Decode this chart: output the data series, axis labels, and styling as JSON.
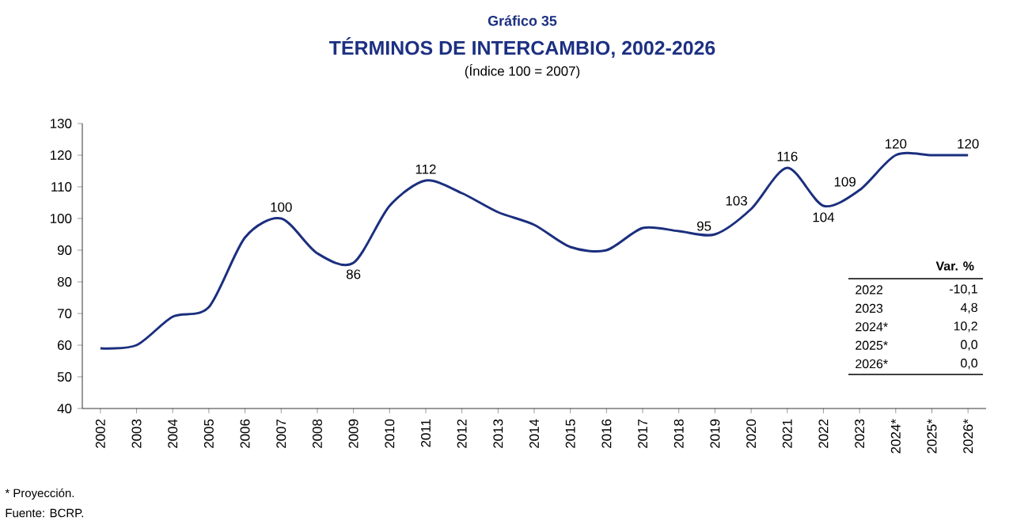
{
  "chart_data": {
    "type": "line",
    "title": "TÉRMINOS DE INTERCAMBIO, 2002-2026",
    "subtitle": "(Índice 100 = 2007)",
    "categories": [
      "2002",
      "2003",
      "2004",
      "2005",
      "2006",
      "2007",
      "2008",
      "2009",
      "2010",
      "2011",
      "2012",
      "2013",
      "2014",
      "2015",
      "2016",
      "2017",
      "2018",
      "2019",
      "2020",
      "2021",
      "2022",
      "2023",
      "2024*",
      "2025*",
      "2026*"
    ],
    "series": [
      {
        "color": "#1b2f7e",
        "values": [
          59,
          60,
          69,
          72,
          94,
          100,
          89,
          86,
          104,
          112,
          108,
          102,
          98,
          91,
          90,
          97,
          96,
          95,
          103,
          116,
          104,
          109,
          120,
          120,
          120
        ]
      }
    ],
    "value_labels": [
      null,
      null,
      null,
      null,
      null,
      "100",
      null,
      "86",
      null,
      "112",
      null,
      null,
      null,
      null,
      null,
      null,
      null,
      "95",
      "103",
      "116",
      "104",
      "109",
      "120",
      null,
      "120"
    ],
    "ylim": [
      40,
      130
    ],
    "yticks": [
      40,
      50,
      60,
      70,
      80,
      90,
      100,
      110,
      120,
      130
    ],
    "grid": false,
    "marker": "none",
    "line_style": "solid",
    "annotations": [
      "Gráfico 35",
      "Var. %",
      "2022",
      "-10,1",
      "2023",
      "4,8",
      "2024*",
      "10,2",
      "2025*",
      "0,0",
      "2026*",
      "0,0",
      "* Proyección.",
      "Fuente: BCRP."
    ]
  }
}
